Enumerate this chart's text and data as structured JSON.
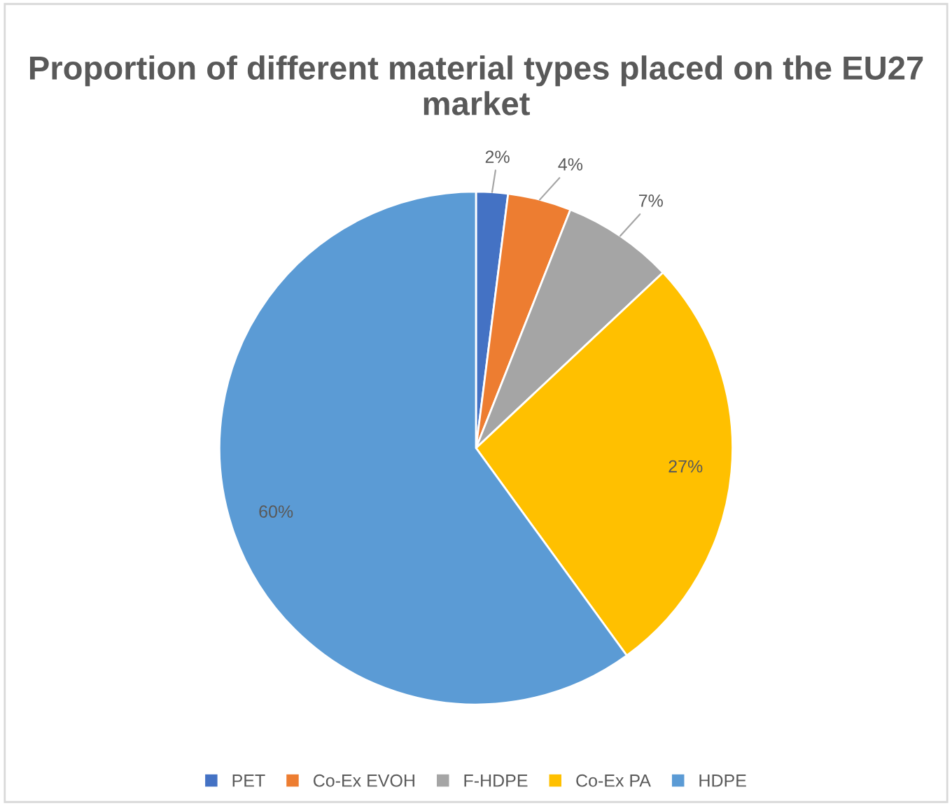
{
  "chart_data": {
    "type": "pie",
    "title": "Proportion of different material types placed on the EU27 market",
    "categories": [
      "PET",
      "Co-Ex EVOH",
      "F-HDPE",
      "Co-Ex PA",
      "HDPE"
    ],
    "values": [
      2,
      4,
      7,
      27,
      60
    ],
    "colors": [
      "#4472c4",
      "#ed7d31",
      "#a5a5a5",
      "#ffc000",
      "#5b9bd5"
    ],
    "value_labels": [
      "2%",
      "4%",
      "7%",
      "27%",
      "60%"
    ],
    "legend": "bottom"
  }
}
